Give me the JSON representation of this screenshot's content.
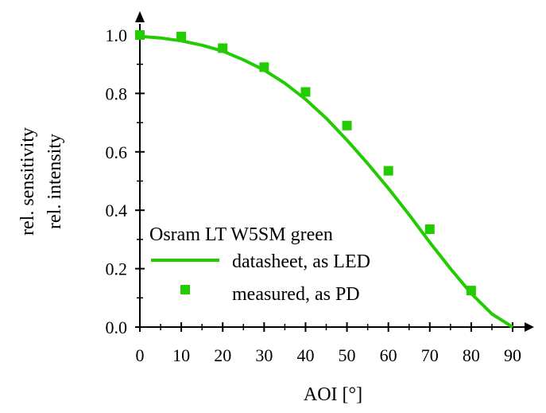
{
  "chart_data": {
    "type": "line",
    "title": "",
    "xlabel": "AOI  [°]",
    "ylabel_lines": [
      "rel. sensitivity",
      "rel. intensity"
    ],
    "xlim": [
      0,
      90
    ],
    "ylim": [
      0,
      1.0
    ],
    "x_ticks": [
      0,
      10,
      20,
      30,
      40,
      50,
      60,
      70,
      80,
      90
    ],
    "y_ticks": [
      0.0,
      0.2,
      0.4,
      0.6,
      0.8,
      1.0
    ],
    "x_tick_labels": [
      "0",
      "10",
      "20",
      "30",
      "40",
      "50",
      "60",
      "70",
      "80",
      "90"
    ],
    "y_tick_labels": [
      "0.0",
      "0.2",
      "0.4",
      "0.6",
      "0.8",
      "1.0"
    ],
    "grid": false,
    "legend": {
      "placement": "center-left",
      "title": "Osram LT W5SM green",
      "entries": [
        "datasheet, as LED",
        "measured, as PD"
      ]
    },
    "series": [
      {
        "name": "datasheet, as LED",
        "type": "line",
        "color": "#22cc00",
        "x": [
          0,
          5,
          10,
          15,
          20,
          25,
          30,
          35,
          40,
          45,
          50,
          55,
          60,
          65,
          70,
          75,
          80,
          85,
          90
        ],
        "y": [
          0.995,
          0.99,
          0.98,
          0.965,
          0.945,
          0.915,
          0.88,
          0.835,
          0.78,
          0.715,
          0.64,
          0.56,
          0.475,
          0.385,
          0.29,
          0.2,
          0.115,
          0.045,
          0.0
        ]
      },
      {
        "name": "measured, as PD",
        "type": "scatter",
        "color": "#22cc00",
        "x": [
          0,
          10,
          20,
          30,
          40,
          50,
          60,
          70,
          80
        ],
        "y": [
          1.0,
          0.995,
          0.955,
          0.89,
          0.805,
          0.69,
          0.535,
          0.335,
          0.125
        ]
      }
    ]
  }
}
